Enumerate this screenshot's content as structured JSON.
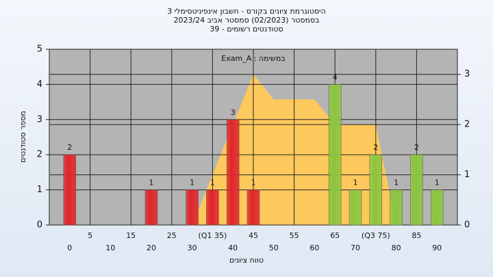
{
  "chart_data": {
    "type": "bar",
    "title": [
      "היסטוגרמת ציונים בקורס - חשבון אינפיניטסימלי 3",
      "בסמסטר  (02/2023)  סמסטר אביב 2023/24",
      "סטודנטים רשומים - 39"
    ],
    "annotation": "Exam_A : במשימה",
    "x_label": "טווח ציונים",
    "y_label": "מספר סטודנטים",
    "categories": [
      "0",
      "5",
      "10",
      "15",
      "20",
      "25",
      "30",
      "(Q1 35)",
      "40",
      "45",
      "50",
      "55",
      "60",
      "65",
      "70",
      "(Q3 75)",
      "80",
      "85",
      "90"
    ],
    "series": [
      {
        "values": [
          2,
          null,
          null,
          null,
          1,
          null,
          1,
          1,
          3,
          1,
          null,
          null,
          null,
          4,
          1,
          2,
          1,
          2,
          1
        ],
        "colors": [
          "#e0262b",
          null,
          null,
          null,
          "#e0262b",
          null,
          "#e0262b",
          "#e0262b",
          "#e0262b",
          "#e0262b",
          null,
          null,
          null,
          "#8cc63f",
          "#8cc63f",
          "#8cc63f",
          "#8cc63f",
          "#8cc63f",
          "#8cc63f"
        ]
      },
      {
        "type": "area",
        "axis": "y2",
        "color": "#fdc95c",
        "values": [
          null,
          null,
          null,
          null,
          null,
          null,
          0,
          1,
          2,
          3,
          2.5,
          2.5,
          2.5,
          2,
          2,
          2,
          0,
          null,
          null
        ]
      }
    ],
    "ylim": [
      0,
      5
    ],
    "yticks": [
      0,
      1,
      2,
      3,
      4,
      5
    ],
    "y2lim": [
      0,
      3.5
    ],
    "y2ticks": [
      0,
      1,
      2,
      3
    ],
    "grid": true
  }
}
